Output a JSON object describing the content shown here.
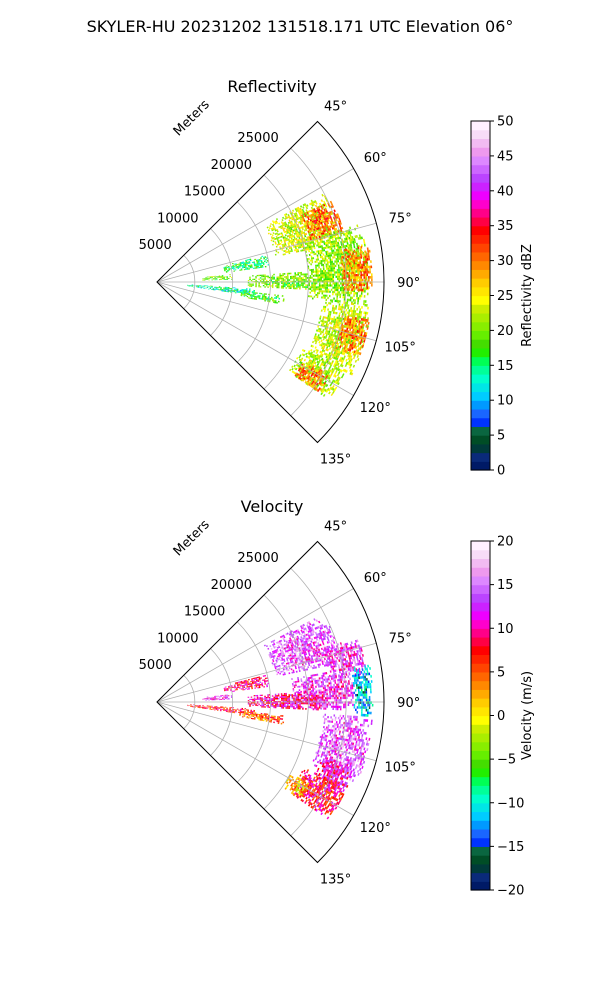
{
  "figure": {
    "suptitle": "SKYLER-HU  20231202  131518.171 UTC Elevation 06°"
  },
  "chart_data": [
    {
      "type": "heatmap",
      "projection": "polar-sector",
      "title": "Reflectivity",
      "radial_axis_label": "Meters",
      "radial_ticks": [
        "5000",
        "10000",
        "15000",
        "20000",
        "25000"
      ],
      "radial_tick_values": [
        5000,
        10000,
        15000,
        20000,
        25000
      ],
      "azimuth_ticks": [
        "45°",
        "60°",
        "75°",
        "90°",
        "105°",
        "120°",
        "135°"
      ],
      "azimuth_tick_values": [
        45,
        60,
        75,
        90,
        105,
        120,
        135
      ],
      "azimuth_range": [
        45,
        135
      ],
      "range_limit": 30000,
      "grid": true,
      "colorbar": {
        "label": "Reflectivity dBZ",
        "ticks": [
          "0",
          "5",
          "10",
          "15",
          "20",
          "25",
          "30",
          "35",
          "40",
          "45",
          "50"
        ],
        "range": [
          0,
          50
        ],
        "colors": [
          "#001a66",
          "#0a2a7a",
          "#003a3a",
          "#004d26",
          "#0a6640",
          "#0033ff",
          "#1a66ff",
          "#0099ff",
          "#00ccff",
          "#00e6e6",
          "#00ffcc",
          "#00ff99",
          "#00ff55",
          "#22ee00",
          "#44dd00",
          "#66ee00",
          "#88ee00",
          "#aaee00",
          "#ccee00",
          "#ffff00",
          "#ffe600",
          "#ffcc00",
          "#ffaa00",
          "#ff8800",
          "#ff6600",
          "#ff4400",
          "#ff2200",
          "#ff0000",
          "#ff0044",
          "#ff0088",
          "#ff00cc",
          "#ee00ff",
          "#cc22ff",
          "#bb44ff",
          "#cc66ff",
          "#dd88ff",
          "#ee99ee",
          "#f2bbf2",
          "#f8dcf8",
          "#fff0ff"
        ]
      },
      "echo_regions": [
        {
          "az": [
            62,
            78
          ],
          "r": [
            16000,
            25000
          ],
          "value": 23
        },
        {
          "az": [
            65,
            75
          ],
          "r": [
            21000,
            25500
          ],
          "value": 31
        },
        {
          "az": [
            74,
            96
          ],
          "r": [
            20000,
            28000
          ],
          "value": 21
        },
        {
          "az": [
            80,
            92
          ],
          "r": [
            24500,
            28500
          ],
          "value": 30
        },
        {
          "az": [
            86,
            93
          ],
          "r": [
            12000,
            23000
          ],
          "value": 20
        },
        {
          "az": [
            84,
            88
          ],
          "r": [
            6000,
            10000
          ],
          "value": 20
        },
        {
          "az": [
            94,
            98
          ],
          "r": [
            4000,
            13000
          ],
          "value": 14
        },
        {
          "az": [
            96,
            100
          ],
          "r": [
            11000,
            17000
          ],
          "value": 18
        },
        {
          "az": [
            96,
            115
          ],
          "r": [
            22000,
            28500
          ],
          "value": 23
        },
        {
          "az": [
            100,
            110
          ],
          "r": [
            25000,
            28500
          ],
          "value": 30
        },
        {
          "az": [
            114,
            124
          ],
          "r": [
            21000,
            27500
          ],
          "value": 22
        },
        {
          "az": [
            118,
            124
          ],
          "r": [
            22000,
            26000
          ],
          "value": 30
        },
        {
          "az": [
            76,
            82
          ],
          "r": [
            9000,
            15000
          ],
          "value": 16
        }
      ]
    },
    {
      "type": "heatmap",
      "projection": "polar-sector",
      "title": "Velocity",
      "radial_axis_label": "Meters",
      "radial_ticks": [
        "5000",
        "10000",
        "15000",
        "20000",
        "25000"
      ],
      "radial_tick_values": [
        5000,
        10000,
        15000,
        20000,
        25000
      ],
      "azimuth_ticks": [
        "45°",
        "60°",
        "75°",
        "90°",
        "105°",
        "120°",
        "135°"
      ],
      "azimuth_tick_values": [
        45,
        60,
        75,
        90,
        105,
        120,
        135
      ],
      "azimuth_range": [
        45,
        135
      ],
      "range_limit": 30000,
      "grid": true,
      "colorbar": {
        "label": "Velocity (m/s)",
        "ticks": [
          "−20",
          "−15",
          "−10",
          "−5",
          "0",
          "5",
          "10",
          "15",
          "20"
        ],
        "range": [
          -20,
          20
        ],
        "colors": [
          "#001a66",
          "#0a2a7a",
          "#003a3a",
          "#004d26",
          "#0a6640",
          "#0033ff",
          "#1a66ff",
          "#0099ff",
          "#00ccff",
          "#00e6e6",
          "#00ffcc",
          "#00ff99",
          "#00ff55",
          "#22ee00",
          "#44dd00",
          "#66ee00",
          "#88ee00",
          "#aaee00",
          "#ccee00",
          "#ffff00",
          "#ffe600",
          "#ffcc00",
          "#ffaa00",
          "#ff8800",
          "#ff6600",
          "#ff4400",
          "#ff2200",
          "#ff0000",
          "#ff0044",
          "#ff0088",
          "#ff00cc",
          "#ee00ff",
          "#cc22ff",
          "#bb44ff",
          "#cc66ff",
          "#dd88ff",
          "#ee99ee",
          "#f2bbf2",
          "#f8dcf8",
          "#fff0ff"
        ]
      },
      "echo_regions": [
        {
          "az": [
            62,
            78
          ],
          "r": [
            16000,
            25000
          ],
          "value": 14
        },
        {
          "az": [
            72,
            82
          ],
          "r": [
            23000,
            28000
          ],
          "value": 13
        },
        {
          "az": [
            80,
            94
          ],
          "r": [
            26000,
            28500
          ],
          "value": -12
        },
        {
          "az": [
            80,
            92
          ],
          "r": [
            18000,
            26000
          ],
          "value": 13
        },
        {
          "az": [
            86,
            93
          ],
          "r": [
            12000,
            22000
          ],
          "value": 10
        },
        {
          "az": [
            84,
            88
          ],
          "r": [
            6000,
            10000
          ],
          "value": 13
        },
        {
          "az": [
            94,
            98
          ],
          "r": [
            4000,
            13000
          ],
          "value": 7
        },
        {
          "az": [
            96,
            100
          ],
          "r": [
            11000,
            17000
          ],
          "value": 5
        },
        {
          "az": [
            94,
            112
          ],
          "r": [
            22000,
            28500
          ],
          "value": 14
        },
        {
          "az": [
            108,
            116
          ],
          "r": [
            23000,
            27500
          ],
          "value": 11
        },
        {
          "az": [
            114,
            124
          ],
          "r": [
            21000,
            27500
          ],
          "value": 8
        },
        {
          "az": [
            118,
            124
          ],
          "r": [
            20000,
            23000
          ],
          "value": 2
        },
        {
          "az": [
            76,
            82
          ],
          "r": [
            9000,
            15000
          ],
          "value": 9
        }
      ]
    }
  ]
}
